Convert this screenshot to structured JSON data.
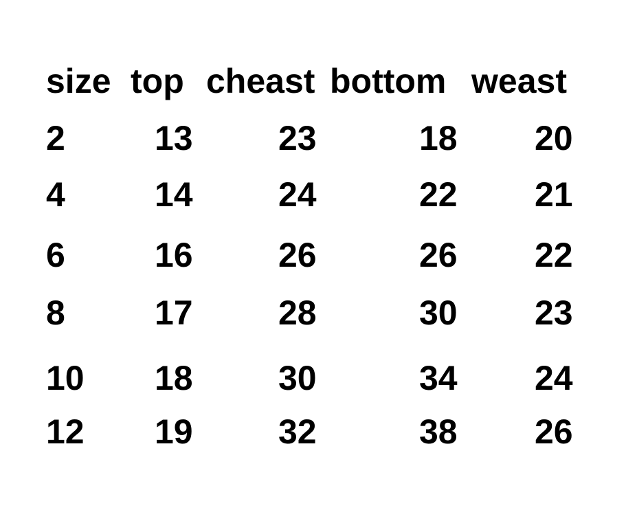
{
  "table": {
    "header": [
      "size",
      "top",
      "cheast",
      "bottom",
      "weast"
    ],
    "rows": [
      [
        2,
        13,
        23,
        18,
        20
      ],
      [
        4,
        14,
        24,
        22,
        21
      ],
      [
        6,
        16,
        26,
        26,
        22
      ],
      [
        8,
        17,
        28,
        30,
        23
      ],
      [
        10,
        18,
        30,
        34,
        24
      ],
      [
        12,
        19,
        32,
        38,
        26
      ]
    ]
  }
}
